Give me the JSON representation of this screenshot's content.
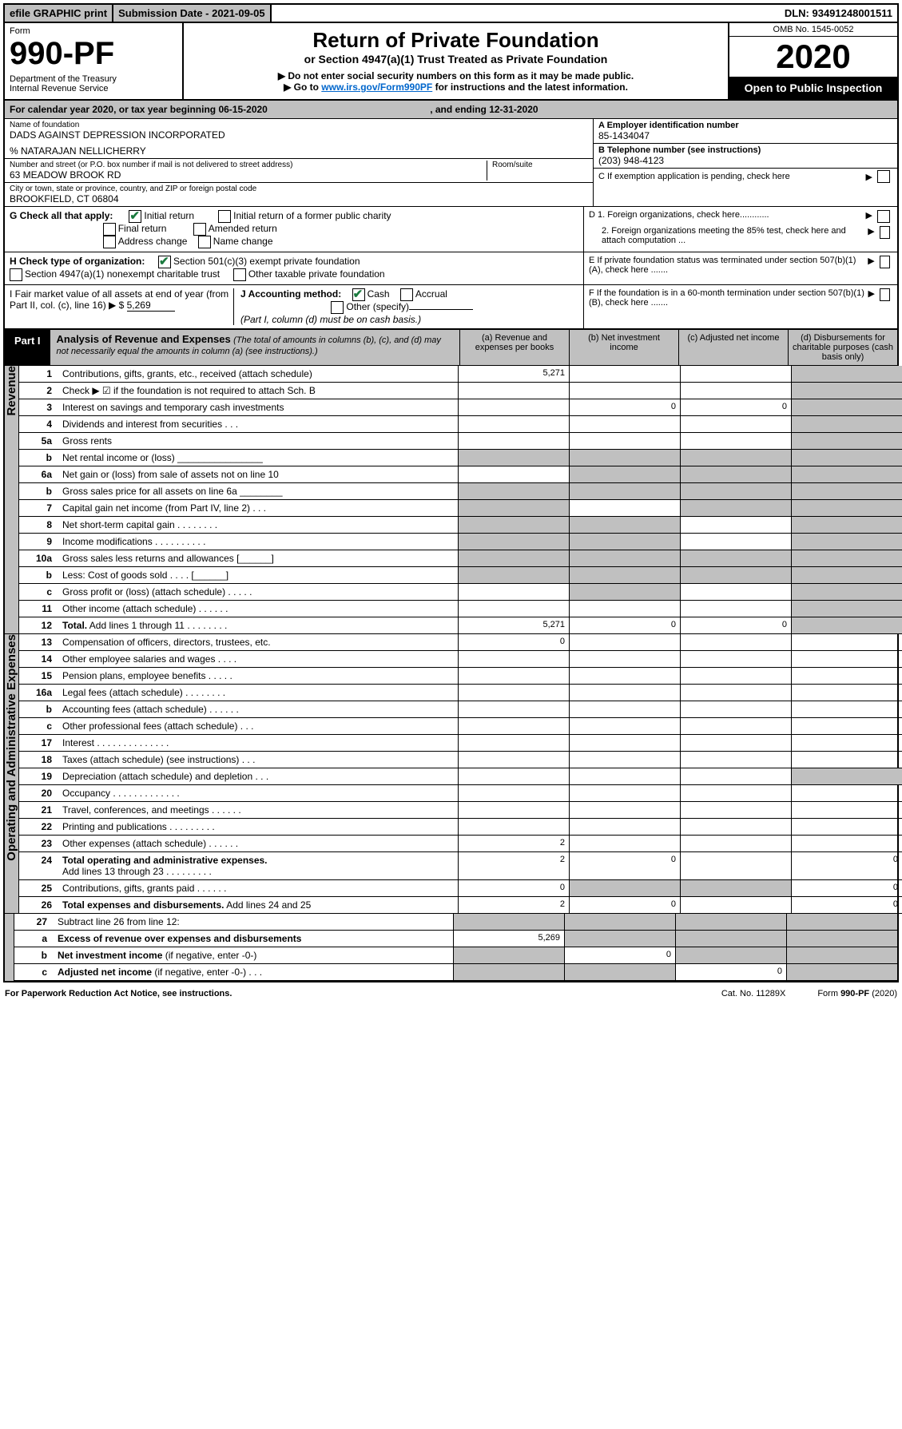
{
  "top_strip": {
    "efile": "efile GRAPHIC print",
    "submission_date_label": "Submission Date - 2021-09-05",
    "dln": "DLN: 93491248001511"
  },
  "header": {
    "form_label": "Form",
    "form_number": "990-PF",
    "dept1": "Department of the Treasury",
    "dept2": "Internal Revenue Service",
    "title_main": "Return of Private Foundation",
    "title_sub": "or Section 4947(a)(1) Trust Treated as Private Foundation",
    "note1": "▶ Do not enter social security numbers on this form as it may be made public.",
    "note2_prefix": "▶ Go to ",
    "note2_link": "www.irs.gov/Form990PF",
    "note2_suffix": " for instructions and the latest information.",
    "omb": "OMB No. 1545-0052",
    "year": "2020",
    "open_public": "Open to Public Inspection"
  },
  "cal_year": {
    "prefix": "For calendar year 2020, or tax year beginning ",
    "begin": "06-15-2020",
    "mid": " , and ending ",
    "end": "12-31-2020"
  },
  "info": {
    "name_label": "Name of foundation",
    "name": "DADS AGAINST DEPRESSION INCORPORATED",
    "care_of": "% NATARAJAN NELLICHERRY",
    "addr_label": "Number and street (or P.O. box number if mail is not delivered to street address)",
    "addr": "63 MEADOW BROOK RD",
    "room_label": "Room/suite",
    "city_label": "City or town, state or province, country, and ZIP or foreign postal code",
    "city": "BROOKFIELD, CT  06804",
    "a_label": "A Employer identification number",
    "a_val": "85-1434047",
    "b_label": "B Telephone number (see instructions)",
    "b_val": "(203) 948-4123",
    "c_label": "C If exemption application is pending, check here",
    "d1": "D 1. Foreign organizations, check here............",
    "d2": "2. Foreign organizations meeting the 85% test, check here and attach computation ...",
    "e": "E  If private foundation status was terminated under section 507(b)(1)(A), check here .......",
    "f": "F  If the foundation is in a 60-month termination under section 507(b)(1)(B), check here .......",
    "g_label": "G Check all that apply:",
    "g_initial": "Initial return",
    "g_initial_former": "Initial return of a former public charity",
    "g_final": "Final return",
    "g_amended": "Amended return",
    "g_address": "Address change",
    "g_name": "Name change",
    "h_label": "H Check type of organization:",
    "h_501c3": "Section 501(c)(3) exempt private foundation",
    "h_4947": "Section 4947(a)(1) nonexempt charitable trust",
    "h_other_tax": "Other taxable private foundation",
    "i_label": "I Fair market value of all assets at end of year (from Part II, col. (c), line 16) ▶ $",
    "i_val": "5,269",
    "j_label": "J Accounting method:",
    "j_cash": "Cash",
    "j_accrual": "Accrual",
    "j_other": "Other (specify)",
    "j_note": "(Part I, column (d) must be on cash basis.)"
  },
  "part1": {
    "label": "Part I",
    "title": "Analysis of Revenue and Expenses",
    "subtitle": "(The total of amounts in columns (b), (c), and (d) may not necessarily equal the amounts in column (a) (see instructions).)",
    "col_a": "(a)   Revenue and expenses per books",
    "col_b": "(b)  Net investment income",
    "col_c": "(c)  Adjusted net income",
    "col_d": "(d)  Disbursements for charitable purposes (cash basis only)"
  },
  "revenue": {
    "rotated": "Revenue",
    "rows": [
      {
        "no": "1",
        "text": "Contributions, gifts, grants, etc., received (attach schedule)",
        "a": "5,271",
        "b": "",
        "c": "",
        "d_shaded": true
      },
      {
        "no": "2",
        "text": "Check ▶ ☑ if the foundation is not required to attach Sch. B",
        "a": "",
        "b": "",
        "c": "",
        "d_shaded": true,
        "all_merged": true
      },
      {
        "no": "3",
        "text": "Interest on savings and temporary cash investments",
        "a": "",
        "b": "0",
        "c": "0",
        "d_shaded": true
      },
      {
        "no": "4",
        "text": "Dividends and interest from securities   .   .   .",
        "a": "",
        "b": "",
        "c": "",
        "d_shaded": true
      },
      {
        "no": "5a",
        "text": "Gross rents",
        "a": "",
        "b": "",
        "c": "",
        "d_shaded": true
      },
      {
        "no": "b",
        "text": "Net rental income or (loss)  ________________",
        "a_shaded": true,
        "b_shaded": true,
        "c_shaded": true,
        "d_shaded": true
      },
      {
        "no": "6a",
        "text": "Net gain or (loss) from sale of assets not on line 10",
        "a": "",
        "b_shaded": true,
        "c_shaded": true,
        "d_shaded": true
      },
      {
        "no": "b",
        "text": "Gross sales price for all assets on line 6a  ________",
        "a_shaded": true,
        "b_shaded": true,
        "c_shaded": true,
        "d_shaded": true
      },
      {
        "no": "7",
        "text": "Capital gain net income (from Part IV, line 2)   .   .   .",
        "a_shaded": true,
        "b": "",
        "c_shaded": true,
        "d_shaded": true
      },
      {
        "no": "8",
        "text": "Net short-term capital gain   .   .   .   .   .   .   .   .",
        "a_shaded": true,
        "b_shaded": true,
        "c": "",
        "d_shaded": true
      },
      {
        "no": "9",
        "text": "Income modifications   .   .   .   .   .   .   .   .   .   .",
        "a_shaded": true,
        "b_shaded": true,
        "c": "",
        "d_shaded": true
      },
      {
        "no": "10a",
        "text": "Gross sales less returns and allowances  [______]",
        "a_shaded": true,
        "b_shaded": true,
        "c_shaded": true,
        "d_shaded": true
      },
      {
        "no": "b",
        "text": "Less: Cost of goods sold      .   .   .   .   [______]",
        "a_shaded": true,
        "b_shaded": true,
        "c_shaded": true,
        "d_shaded": true
      },
      {
        "no": "c",
        "text": "Gross profit or (loss) (attach schedule)   .   .   .   .   .",
        "a": "",
        "b_shaded": true,
        "c": "",
        "d_shaded": true
      },
      {
        "no": "11",
        "text": "Other income (attach schedule)     .   .   .   .   .   .",
        "a": "",
        "b": "",
        "c": "",
        "d_shaded": true
      },
      {
        "no": "12",
        "text_bold": "Total.",
        "text": " Add lines 1 through 11    .   .   .   .   .   .   .   .",
        "a": "5,271",
        "b": "0",
        "c": "0",
        "d_shaded": true
      }
    ]
  },
  "expenses": {
    "rotated": "Operating and Administrative Expenses",
    "rows": [
      {
        "no": "13",
        "text": "Compensation of officers, directors, trustees, etc.",
        "a": "0",
        "b": "",
        "c": "",
        "d": ""
      },
      {
        "no": "14",
        "text": "Other employee salaries and wages    .   .   .   .",
        "a": "",
        "b": "",
        "c": "",
        "d": ""
      },
      {
        "no": "15",
        "text": "Pension plans, employee benefits   .   .   .   .   .",
        "a": "",
        "b": "",
        "c": "",
        "d": ""
      },
      {
        "no": "16a",
        "text": "Legal fees (attach schedule)  .   .   .   .   .   .   .   .",
        "a": "",
        "b": "",
        "c": "",
        "d": ""
      },
      {
        "no": "b",
        "text": "Accounting fees (attach schedule)   .   .   .   .   .   .",
        "a": "",
        "b": "",
        "c": "",
        "d": ""
      },
      {
        "no": "c",
        "text": "Other professional fees (attach schedule)    .   .   .",
        "a": "",
        "b": "",
        "c": "",
        "d": ""
      },
      {
        "no": "17",
        "text": "Interest   .   .   .   .   .   .   .   .   .   .   .   .   .   .",
        "a": "",
        "b": "",
        "c": "",
        "d": ""
      },
      {
        "no": "18",
        "text": "Taxes (attach schedule) (see instructions)    .   .   .",
        "a": "",
        "b": "",
        "c": "",
        "d": ""
      },
      {
        "no": "19",
        "text": "Depreciation (attach schedule) and depletion   .   .   .",
        "a": "",
        "b": "",
        "c": "",
        "d_shaded": true
      },
      {
        "no": "20",
        "text": "Occupancy  .   .   .   .   .   .   .   .   .   .   .   .   .",
        "a": "",
        "b": "",
        "c": "",
        "d": ""
      },
      {
        "no": "21",
        "text": "Travel, conferences, and meetings  .   .   .   .   .   .",
        "a": "",
        "b": "",
        "c": "",
        "d": ""
      },
      {
        "no": "22",
        "text": "Printing and publications  .   .   .   .   .   .   .   .   .",
        "a": "",
        "b": "",
        "c": "",
        "d": ""
      },
      {
        "no": "23",
        "text": "Other expenses (attach schedule)  .   .   .   .   .   .",
        "a": "2",
        "b": "",
        "c": "",
        "d": ""
      },
      {
        "no": "24",
        "text_bold": "Total operating and administrative expenses.",
        "text2": "Add lines 13 through 23   .   .   .   .   .   .   .   .   .",
        "a": "2",
        "b": "0",
        "c": "",
        "d": "0"
      },
      {
        "no": "25",
        "text": "Contributions, gifts, grants paid     .   .   .   .   .   .",
        "a": "0",
        "b_shaded": true,
        "c_shaded": true,
        "d": "0"
      },
      {
        "no": "26",
        "text_bold": "Total expenses and disbursements.",
        "text": " Add lines 24 and 25",
        "a": "2",
        "b": "0",
        "c": "",
        "d": "0"
      }
    ]
  },
  "subtract": {
    "rows": [
      {
        "no": "27",
        "text": "Subtract line 26 from line 12:",
        "a_shaded": true,
        "b_shaded": true,
        "c_shaded": true,
        "d_shaded": true
      },
      {
        "no": "a",
        "text_bold": "Excess of revenue over expenses and disbursements",
        "a": "5,269",
        "b_shaded": true,
        "c_shaded": true,
        "d_shaded": true
      },
      {
        "no": "b",
        "text_bold": "Net investment income",
        "text": " (if negative, enter -0-)",
        "a_shaded": true,
        "b": "0",
        "c_shaded": true,
        "d_shaded": true
      },
      {
        "no": "c",
        "text_bold": "Adjusted net income",
        "text": " (if negative, enter -0-)   .   .   .",
        "a_shaded": true,
        "b_shaded": true,
        "c": "0",
        "d_shaded": true
      }
    ]
  },
  "footer": {
    "left": "For Paperwork Reduction Act Notice, see instructions.",
    "mid": "Cat. No. 11289X",
    "right": "Form 990-PF (2020)"
  }
}
